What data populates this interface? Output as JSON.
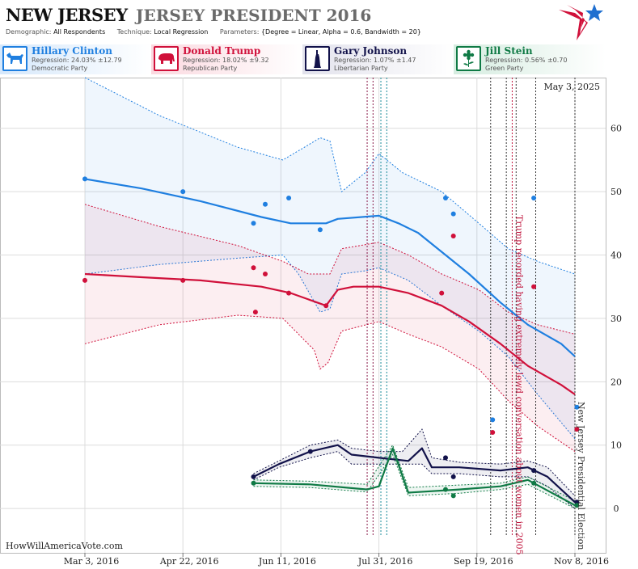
{
  "header": {
    "state": "NEW JERSEY",
    "race": "JERSEY PRESIDENT 2016",
    "demographic_label": "Demographic:",
    "demographic": "All Respondents",
    "technique_label": "Technique:",
    "technique": "Local Regression",
    "parameters_label": "Parameters:",
    "parameters": "{Degree = Linear, Alpha = 0.6, Bandwidth = 20}",
    "logo_icon": "star-flag-logo-icon"
  },
  "candidates": [
    {
      "name": "Hillary Clinton",
      "regression": "Regression: 24.03% ±12.79",
      "party": "Democratic Party",
      "color": "#1f7fe0",
      "icon": "donkey-icon"
    },
    {
      "name": "Donald Trump",
      "regression": "Regression: 18.02% ±9.32",
      "party": "Republican Party",
      "color": "#d0103a",
      "icon": "elephant-icon"
    },
    {
      "name": "Gary Johnson",
      "regression": "Regression: 1.07% ±1.47",
      "party": "Libertarian Party",
      "color": "#12124a",
      "icon": "liberty-statue-icon"
    },
    {
      "name": "Jill Stein",
      "regression": "Regression: 0.56% ±0.70",
      "party": "Green Party",
      "color": "#0f7a45",
      "icon": "flower-icon"
    }
  ],
  "chart_data": {
    "type": "scatter",
    "date_label": "May 3, 2025",
    "watermark": "HowWillAmericaVote.com",
    "x_ticks": [
      "Mar 3, 2016",
      "Apr 22, 2016",
      "Jun 11, 2016",
      "Jul 31, 2016",
      "Sep 19, 2016",
      "Nov 8, 2016"
    ],
    "x_range": [
      "2016-03-03",
      "2016-11-08"
    ],
    "y_ticks": [
      0,
      10,
      20,
      30,
      40,
      50,
      60
    ],
    "ylim": [
      -7,
      68
    ],
    "grid": true,
    "annotations": [
      {
        "text": "Trump recorded having extremely lewd conversation about women in 2005",
        "date": "2016-10-07",
        "color": "#c0143c"
      },
      {
        "text": "New Jersey Presidential Election",
        "date": "2016-11-08",
        "color": "#333333"
      }
    ],
    "series": [
      {
        "name": "Hillary Clinton",
        "color": "#1f7fe0",
        "points": [
          [
            "2016-03-03",
            52
          ],
          [
            "2016-04-22",
            50
          ],
          [
            "2016-05-28",
            45
          ],
          [
            "2016-06-03",
            48
          ],
          [
            "2016-06-15",
            49
          ],
          [
            "2016-07-01",
            44
          ],
          [
            "2016-09-03",
            49
          ],
          [
            "2016-09-07",
            46.5
          ],
          [
            "2016-09-27",
            14
          ],
          [
            "2016-10-18",
            49
          ],
          [
            "2016-11-09",
            16
          ]
        ],
        "trend": [
          [
            "2016-03-03",
            52
          ],
          [
            "2016-04-01",
            50.5
          ],
          [
            "2016-05-01",
            48.5
          ],
          [
            "2016-06-01",
            46
          ],
          [
            "2016-06-16",
            45
          ],
          [
            "2016-07-04",
            45
          ],
          [
            "2016-07-10",
            45.7
          ],
          [
            "2016-07-31",
            46.2
          ],
          [
            "2016-08-10",
            45
          ],
          [
            "2016-08-20",
            43.5
          ],
          [
            "2016-09-01",
            40.5
          ],
          [
            "2016-09-15",
            37
          ],
          [
            "2016-10-01",
            32.5
          ],
          [
            "2016-10-15",
            29
          ],
          [
            "2016-11-01",
            26
          ],
          [
            "2016-11-08",
            24
          ]
        ],
        "upper": [
          [
            "2016-03-03",
            68
          ],
          [
            "2016-04-10",
            62
          ],
          [
            "2016-05-20",
            57
          ],
          [
            "2016-06-12",
            55
          ],
          [
            "2016-06-23",
            57
          ],
          [
            "2016-07-01",
            58.5
          ],
          [
            "2016-07-06",
            58
          ],
          [
            "2016-07-12",
            50
          ],
          [
            "2016-07-24",
            53
          ],
          [
            "2016-07-31",
            56
          ],
          [
            "2016-08-12",
            53
          ],
          [
            "2016-09-01",
            50
          ],
          [
            "2016-09-20",
            45
          ],
          [
            "2016-10-05",
            41
          ],
          [
            "2016-10-20",
            39
          ],
          [
            "2016-11-08",
            37
          ]
        ],
        "lower": [
          [
            "2016-03-03",
            37
          ],
          [
            "2016-04-10",
            38.5
          ],
          [
            "2016-05-20",
            39.5
          ],
          [
            "2016-06-12",
            40
          ],
          [
            "2016-06-20",
            37
          ],
          [
            "2016-07-01",
            31
          ],
          [
            "2016-07-06",
            31.5
          ],
          [
            "2016-07-12",
            37
          ],
          [
            "2016-07-24",
            37.5
          ],
          [
            "2016-07-31",
            38
          ],
          [
            "2016-08-15",
            36
          ],
          [
            "2016-09-01",
            32
          ],
          [
            "2016-09-20",
            28
          ],
          [
            "2016-10-05",
            24
          ],
          [
            "2016-10-20",
            18
          ],
          [
            "2016-11-08",
            11
          ]
        ]
      },
      {
        "name": "Donald Trump",
        "color": "#d0103a",
        "points": [
          [
            "2016-03-03",
            36
          ],
          [
            "2016-04-22",
            36
          ],
          [
            "2016-05-28",
            38
          ],
          [
            "2016-06-03",
            37
          ],
          [
            "2016-05-29",
            31
          ],
          [
            "2016-06-15",
            34
          ],
          [
            "2016-07-04",
            32
          ],
          [
            "2016-09-01",
            34
          ],
          [
            "2016-09-07",
            43
          ],
          [
            "2016-09-27",
            12
          ],
          [
            "2016-10-18",
            35
          ],
          [
            "2016-11-09",
            12.5
          ]
        ],
        "trend": [
          [
            "2016-03-03",
            37
          ],
          [
            "2016-04-01",
            36.5
          ],
          [
            "2016-05-01",
            36
          ],
          [
            "2016-06-01",
            35
          ],
          [
            "2016-06-16",
            34
          ],
          [
            "2016-07-04",
            32
          ],
          [
            "2016-07-10",
            34.5
          ],
          [
            "2016-07-18",
            35
          ],
          [
            "2016-07-31",
            35
          ],
          [
            "2016-08-15",
            34
          ],
          [
            "2016-09-01",
            32
          ],
          [
            "2016-09-15",
            29.5
          ],
          [
            "2016-10-01",
            26
          ],
          [
            "2016-10-15",
            22.5
          ],
          [
            "2016-11-01",
            19.5
          ],
          [
            "2016-11-08",
            18
          ]
        ],
        "upper": [
          [
            "2016-03-03",
            48
          ],
          [
            "2016-04-10",
            44.5
          ],
          [
            "2016-05-20",
            41.5
          ],
          [
            "2016-06-12",
            39
          ],
          [
            "2016-06-25",
            37
          ],
          [
            "2016-07-06",
            37
          ],
          [
            "2016-07-12",
            41
          ],
          [
            "2016-07-31",
            42
          ],
          [
            "2016-08-15",
            40
          ],
          [
            "2016-09-01",
            37
          ],
          [
            "2016-09-20",
            34.5
          ],
          [
            "2016-10-05",
            31
          ],
          [
            "2016-10-20",
            29
          ],
          [
            "2016-11-08",
            27.5
          ]
        ],
        "lower": [
          [
            "2016-03-03",
            26
          ],
          [
            "2016-04-10",
            29
          ],
          [
            "2016-05-20",
            30.5
          ],
          [
            "2016-06-12",
            30
          ],
          [
            "2016-06-28",
            25
          ],
          [
            "2016-07-01",
            22
          ],
          [
            "2016-07-05",
            23
          ],
          [
            "2016-07-12",
            28
          ],
          [
            "2016-07-31",
            29.5
          ],
          [
            "2016-08-15",
            27.5
          ],
          [
            "2016-09-01",
            25.5
          ],
          [
            "2016-09-20",
            22
          ],
          [
            "2016-10-05",
            17
          ],
          [
            "2016-10-20",
            13
          ],
          [
            "2016-11-08",
            9
          ]
        ]
      },
      {
        "name": "Gary Johnson",
        "color": "#12124a",
        "points": [
          [
            "2016-05-28",
            5
          ],
          [
            "2016-06-26",
            9
          ],
          [
            "2016-09-03",
            8
          ],
          [
            "2016-09-07",
            5
          ],
          [
            "2016-10-18",
            6
          ],
          [
            "2016-11-09",
            1
          ]
        ],
        "trend": [
          [
            "2016-05-28",
            5
          ],
          [
            "2016-06-10",
            7
          ],
          [
            "2016-06-26",
            9
          ],
          [
            "2016-07-10",
            10
          ],
          [
            "2016-07-17",
            8.5
          ],
          [
            "2016-07-31",
            8
          ],
          [
            "2016-08-15",
            7.5
          ],
          [
            "2016-08-22",
            9.5
          ],
          [
            "2016-08-27",
            6.5
          ],
          [
            "2016-09-10",
            6.5
          ],
          [
            "2016-10-01",
            6
          ],
          [
            "2016-10-15",
            6.5
          ],
          [
            "2016-10-25",
            5
          ],
          [
            "2016-11-08",
            1
          ]
        ],
        "upper": [
          [
            "2016-05-28",
            5.5
          ],
          [
            "2016-06-10",
            7.5
          ],
          [
            "2016-06-26",
            10
          ],
          [
            "2016-07-10",
            10.8
          ],
          [
            "2016-07-17",
            9.5
          ],
          [
            "2016-07-31",
            9
          ],
          [
            "2016-08-12",
            9
          ],
          [
            "2016-08-22",
            12.5
          ],
          [
            "2016-08-27",
            8
          ],
          [
            "2016-09-10",
            7.3
          ],
          [
            "2016-10-01",
            7
          ],
          [
            "2016-10-15",
            7.5
          ],
          [
            "2016-10-25",
            6.5
          ],
          [
            "2016-11-08",
            2
          ]
        ],
        "lower": [
          [
            "2016-05-28",
            4.5
          ],
          [
            "2016-06-10",
            6.5
          ],
          [
            "2016-06-26",
            8
          ],
          [
            "2016-07-10",
            9
          ],
          [
            "2016-07-17",
            7
          ],
          [
            "2016-07-31",
            7
          ],
          [
            "2016-08-15",
            7
          ],
          [
            "2016-08-22",
            7
          ],
          [
            "2016-08-27",
            5.5
          ],
          [
            "2016-09-10",
            5.5
          ],
          [
            "2016-10-01",
            5
          ],
          [
            "2016-10-15",
            5
          ],
          [
            "2016-10-25",
            3.5
          ],
          [
            "2016-11-08",
            0
          ]
        ]
      },
      {
        "name": "Jill Stein",
        "color": "#0f7a45",
        "points": [
          [
            "2016-05-28",
            4
          ],
          [
            "2016-09-03",
            3
          ],
          [
            "2016-09-07",
            2
          ],
          [
            "2016-10-18",
            4
          ],
          [
            "2016-11-09",
            0.5
          ]
        ],
        "trend": [
          [
            "2016-05-28",
            4
          ],
          [
            "2016-06-26",
            3.8
          ],
          [
            "2016-07-25",
            3
          ],
          [
            "2016-07-31",
            3.5
          ],
          [
            "2016-08-07",
            9.5
          ],
          [
            "2016-08-15",
            2.5
          ],
          [
            "2016-09-10",
            3
          ],
          [
            "2016-10-01",
            3.5
          ],
          [
            "2016-10-15",
            4.5
          ],
          [
            "2016-11-08",
            0.5
          ]
        ],
        "upper": [
          [
            "2016-05-28",
            4.5
          ],
          [
            "2016-06-26",
            4.3
          ],
          [
            "2016-07-25",
            3.8
          ],
          [
            "2016-08-07",
            10
          ],
          [
            "2016-08-15",
            3.3
          ],
          [
            "2016-09-10",
            3.7
          ],
          [
            "2016-10-01",
            4
          ],
          [
            "2016-10-15",
            5
          ],
          [
            "2016-11-08",
            1.2
          ]
        ],
        "lower": [
          [
            "2016-05-28",
            3.5
          ],
          [
            "2016-06-26",
            3.3
          ],
          [
            "2016-07-25",
            2.6
          ],
          [
            "2016-08-07",
            8.5
          ],
          [
            "2016-08-15",
            2
          ],
          [
            "2016-09-10",
            2.4
          ],
          [
            "2016-10-01",
            3
          ],
          [
            "2016-10-15",
            3.8
          ],
          [
            "2016-11-08",
            0
          ]
        ]
      }
    ],
    "event_lines": [
      {
        "date": "2016-07-25",
        "color": "#8b1a4a"
      },
      {
        "date": "2016-07-28",
        "color": "#8b1a4a"
      },
      {
        "date": "2016-08-01",
        "color": "#1a8a9a"
      },
      {
        "date": "2016-08-04",
        "color": "#1a8a9a"
      },
      {
        "date": "2016-09-26",
        "color": "#333333"
      },
      {
        "date": "2016-10-04",
        "color": "#333333"
      },
      {
        "date": "2016-10-07",
        "color": "#c0143c"
      },
      {
        "date": "2016-10-09",
        "color": "#333333"
      },
      {
        "date": "2016-10-19",
        "color": "#333333"
      },
      {
        "date": "2016-11-08",
        "color": "#333333"
      }
    ]
  }
}
